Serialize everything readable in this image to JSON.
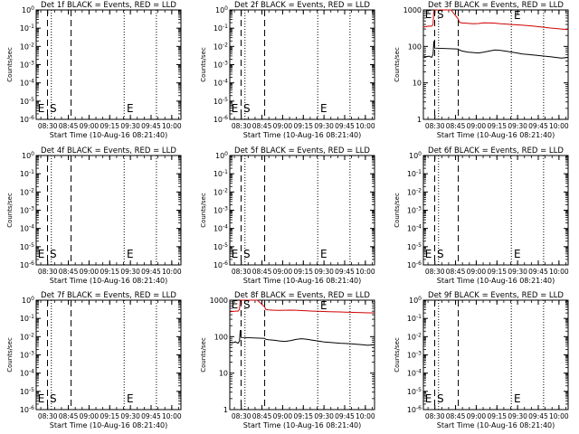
{
  "page": {
    "background": "#ffffff",
    "frame_color": "#000000",
    "events_color": "#000000",
    "lld_color": "#d00000"
  },
  "chart_data": [
    {
      "type": "line",
      "title": "Det 1f BLACK = Events, RED = LLD",
      "xlabel": "Start Time (10-Aug-16 08:21:40)",
      "ylabel": "Counts/sec",
      "x_ticks": [
        "08:30",
        "08:45",
        "09:00",
        "09:15",
        "09:30",
        "09:45",
        "10:00"
      ],
      "y_scale": "log",
      "y_ticks": [
        "10^0",
        "10^-1",
        "10^-2",
        "10^-3",
        "10^-4",
        "10^-5",
        "10^-6"
      ],
      "xlim_min": [
        0,
        105
      ],
      "dashed_lines_min": [
        8.2,
        25.3
      ],
      "dotted_lines_min": [
        11.0,
        63.8,
        87.2
      ],
      "markers": [
        {
          "label": "E",
          "x_min": 0.5
        },
        {
          "label": "S",
          "x_min": 9.2
        },
        {
          "label": "E",
          "x_min": 65.0
        }
      ],
      "series": []
    },
    {
      "type": "line",
      "title": "Det 2f BLACK = Events, RED = LLD",
      "xlabel": "Start Time (10-Aug-16 08:21:40)",
      "ylabel": "Counts/sec",
      "x_ticks": [
        "08:30",
        "08:45",
        "09:00",
        "09:15",
        "09:30",
        "09:45",
        "10:00"
      ],
      "y_scale": "log",
      "y_ticks": [
        "10^0",
        "10^-1",
        "10^-2",
        "10^-3",
        "10^-4",
        "10^-5",
        "10^-6"
      ],
      "xlim_min": [
        0,
        105
      ],
      "dashed_lines_min": [
        8.2,
        25.3
      ],
      "dotted_lines_min": [
        11.0,
        63.8,
        87.2
      ],
      "markers": [
        {
          "label": "E",
          "x_min": 0.5
        },
        {
          "label": "S",
          "x_min": 9.2
        },
        {
          "label": "E",
          "x_min": 65.0
        }
      ],
      "series": []
    },
    {
      "type": "line",
      "title": "Det 3f BLACK = Events, RED = LLD",
      "xlabel": "Start Time (10-Aug-16 08:21:40)",
      "ylabel": "Counts/sec",
      "x_ticks": [
        "08:30",
        "08:45",
        "09:00",
        "09:15",
        "09:30",
        "09:45",
        "10:00"
      ],
      "y_scale": "log",
      "y_ticks": [
        "1000",
        "100",
        "10",
        "1"
      ],
      "ylim": [
        1,
        1000
      ],
      "xlim_min": [
        0,
        105
      ],
      "dashed_lines_min": [
        8.2,
        25.3
      ],
      "dotted_lines_min": [
        11.0,
        63.8,
        87.2
      ],
      "markers": [
        {
          "label": "E",
          "x_min": 0.5
        },
        {
          "label": "S",
          "x_min": 9.2
        },
        {
          "label": "E",
          "x_min": 65.0
        }
      ],
      "series": [
        {
          "color": "#d00000",
          "x_min": [
            0,
            2,
            4,
            6,
            7,
            7.5,
            8.2,
            20,
            25.3,
            26,
            28,
            32,
            36,
            40,
            44,
            48,
            52,
            56,
            60,
            64,
            68,
            72,
            76,
            80,
            84,
            88,
            92,
            96,
            100,
            105
          ],
          "y": [
            340,
            350,
            360,
            360,
            400,
            900,
            1000,
            1000,
            560,
            460,
            440,
            430,
            420,
            425,
            445,
            440,
            435,
            420,
            410,
            400,
            390,
            380,
            370,
            360,
            345,
            335,
            320,
            310,
            300,
            290
          ]
        },
        {
          "color": "#000000",
          "x_min": [
            0,
            2,
            4,
            6,
            7,
            7.6,
            8.2,
            25.3,
            26,
            28,
            32,
            36,
            40,
            44,
            48,
            52,
            56,
            60,
            64,
            68,
            72,
            76,
            80,
            84,
            88,
            92,
            96,
            100,
            105
          ],
          "y": [
            55,
            52,
            54,
            50,
            60,
            140,
            90,
            85,
            80,
            75,
            70,
            68,
            66,
            70,
            75,
            80,
            78,
            74,
            70,
            66,
            62,
            60,
            58,
            56,
            54,
            52,
            50,
            48,
            50
          ]
        }
      ]
    },
    {
      "type": "line",
      "title": "Det 4f BLACK = Events, RED = LLD",
      "xlabel": "Start Time (10-Aug-16 08:21:40)",
      "ylabel": "Counts/sec",
      "x_ticks": [
        "08:30",
        "08:45",
        "09:00",
        "09:15",
        "09:30",
        "09:45",
        "10:00"
      ],
      "y_scale": "log",
      "y_ticks": [
        "10^0",
        "10^-1",
        "10^-2",
        "10^-3",
        "10^-4",
        "10^-5",
        "10^-6"
      ],
      "xlim_min": [
        0,
        105
      ],
      "dashed_lines_min": [
        8.2,
        25.3
      ],
      "dotted_lines_min": [
        11.0,
        63.8,
        87.2
      ],
      "markers": [
        {
          "label": "E",
          "x_min": 0.5
        },
        {
          "label": "S",
          "x_min": 9.2
        },
        {
          "label": "E",
          "x_min": 65.0
        }
      ],
      "series": []
    },
    {
      "type": "line",
      "title": "Det 5f BLACK = Events, RED = LLD",
      "xlabel": "Start Time (10-Aug-16 08:21:40)",
      "ylabel": "Counts/sec",
      "x_ticks": [
        "08:30",
        "08:45",
        "09:00",
        "09:15",
        "09:30",
        "09:45",
        "10:00"
      ],
      "y_scale": "log",
      "y_ticks": [
        "10^0",
        "10^-1",
        "10^-2",
        "10^-3",
        "10^-4",
        "10^-5",
        "10^-6"
      ],
      "xlim_min": [
        0,
        105
      ],
      "dashed_lines_min": [
        8.2,
        25.3
      ],
      "dotted_lines_min": [
        11.0,
        63.8,
        87.2
      ],
      "markers": [
        {
          "label": "E",
          "x_min": 0.5
        },
        {
          "label": "S",
          "x_min": 9.2
        },
        {
          "label": "E",
          "x_min": 65.0
        }
      ],
      "series": []
    },
    {
      "type": "line",
      "title": "Det 6f BLACK = Events, RED = LLD",
      "xlabel": "Start Time (10-Aug-16 08:21:40)",
      "ylabel": "Counts/sec",
      "x_ticks": [
        "08:30",
        "08:45",
        "09:00",
        "09:15",
        "09:30",
        "09:45",
        "10:00"
      ],
      "y_scale": "log",
      "y_ticks": [
        "10^0",
        "10^-1",
        "10^-2",
        "10^-3",
        "10^-4",
        "10^-5",
        "10^-6"
      ],
      "xlim_min": [
        0,
        105
      ],
      "dashed_lines_min": [
        8.2,
        25.3
      ],
      "dotted_lines_min": [
        11.0,
        63.8,
        87.2
      ],
      "markers": [
        {
          "label": "E",
          "x_min": 0.5
        },
        {
          "label": "S",
          "x_min": 9.2
        },
        {
          "label": "E",
          "x_min": 65.0
        }
      ],
      "series": []
    },
    {
      "type": "line",
      "title": "Det 7f BLACK = Events, RED = LLD",
      "xlabel": "Start Time (10-Aug-16 08:21:40)",
      "ylabel": "Counts/sec",
      "x_ticks": [
        "08:30",
        "08:45",
        "09:00",
        "09:15",
        "09:30",
        "09:45",
        "10:00"
      ],
      "y_scale": "log",
      "y_ticks": [
        "10^0",
        "10^-1",
        "10^-2",
        "10^-3",
        "10^-4",
        "10^-5",
        "10^-6"
      ],
      "xlim_min": [
        0,
        105
      ],
      "dashed_lines_min": [
        8.2,
        25.3
      ],
      "dotted_lines_min": [
        11.0,
        63.8,
        87.2
      ],
      "markers": [
        {
          "label": "E",
          "x_min": 0.5
        },
        {
          "label": "S",
          "x_min": 9.2
        },
        {
          "label": "E",
          "x_min": 65.0
        }
      ],
      "series": []
    },
    {
      "type": "line",
      "title": "Det 8f BLACK = Events, RED = LLD",
      "xlabel": "Start Time (10-Aug-16 08:21:40)",
      "ylabel": "Counts/sec",
      "x_ticks": [
        "08:30",
        "08:45",
        "09:00",
        "09:15",
        "09:30",
        "09:45",
        "10:00"
      ],
      "y_scale": "log",
      "y_ticks": [
        "1000",
        "100",
        "10",
        "1"
      ],
      "ylim": [
        1,
        1000
      ],
      "xlim_min": [
        0,
        105
      ],
      "dashed_lines_min": [
        8.2,
        25.3
      ],
      "dotted_lines_min": [
        11.0,
        63.8,
        87.2
      ],
      "markers": [
        {
          "label": "E",
          "x_min": 0.5
        },
        {
          "label": "S",
          "x_min": 9.2
        },
        {
          "label": "E",
          "x_min": 65.0
        }
      ],
      "series": [
        {
          "color": "#d00000",
          "x_min": [
            0,
            2,
            4,
            6,
            7,
            7.5,
            8.2,
            20,
            25.3,
            26,
            28,
            32,
            36,
            40,
            44,
            48,
            52,
            56,
            60,
            64,
            68,
            72,
            76,
            80,
            84,
            88,
            92,
            96,
            100,
            105
          ],
          "y": [
            480,
            490,
            500,
            500,
            560,
            950,
            1000,
            1000,
            650,
            560,
            540,
            530,
            525,
            530,
            535,
            530,
            520,
            510,
            500,
            495,
            490,
            485,
            480,
            475,
            470,
            465,
            460,
            455,
            450,
            450
          ]
        },
        {
          "color": "#000000",
          "x_min": [
            0,
            2,
            4,
            6,
            7,
            7.6,
            8.2,
            25.3,
            26,
            28,
            32,
            36,
            40,
            44,
            48,
            52,
            56,
            60,
            64,
            68,
            72,
            76,
            80,
            84,
            88,
            92,
            96,
            100,
            105
          ],
          "y": [
            70,
            68,
            72,
            66,
            75,
            150,
            95,
            90,
            85,
            82,
            80,
            76,
            74,
            78,
            84,
            88,
            85,
            80,
            76,
            72,
            70,
            68,
            66,
            65,
            64,
            62,
            60,
            58,
            60
          ]
        }
      ]
    },
    {
      "type": "line",
      "title": "Det 9f BLACK = Events, RED = LLD",
      "xlabel": "Start Time (10-Aug-16 08:21:40)",
      "ylabel": "Counts/sec",
      "x_ticks": [
        "08:30",
        "08:45",
        "09:00",
        "09:15",
        "09:30",
        "09:45",
        "10:00"
      ],
      "y_scale": "log",
      "y_ticks": [
        "10^0",
        "10^-1",
        "10^-2",
        "10^-3",
        "10^-4",
        "10^-5",
        "10^-6"
      ],
      "xlim_min": [
        0,
        105
      ],
      "dashed_lines_min": [
        8.2,
        25.3
      ],
      "dotted_lines_min": [
        11.0,
        63.8,
        87.2
      ],
      "markers": [
        {
          "label": "E",
          "x_min": 0.5
        },
        {
          "label": "S",
          "x_min": 9.2
        },
        {
          "label": "E",
          "x_min": 65.0
        }
      ],
      "series": []
    }
  ]
}
